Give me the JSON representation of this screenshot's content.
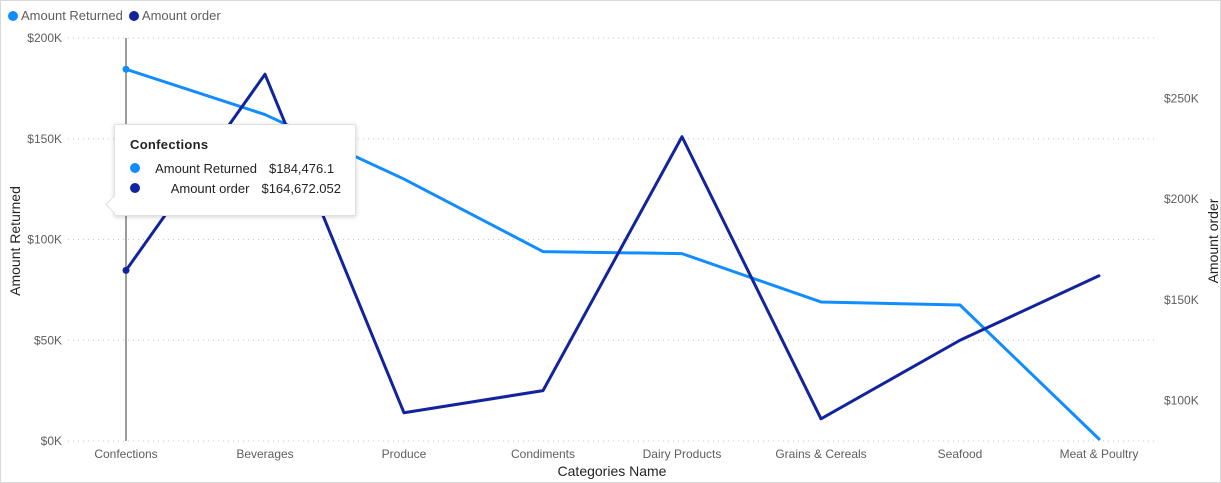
{
  "chart_data": {
    "type": "line",
    "categories": [
      "Confections",
      "Beverages",
      "Produce",
      "Condiments",
      "Dairy Products",
      "Grains & Cereals",
      "Seafood",
      "Meat & Poultry"
    ],
    "series": [
      {
        "name": "Amount Returned",
        "axis": "left",
        "color": "#118dff",
        "values": [
          184476.1,
          162000,
          130000,
          94000,
          93000,
          69000,
          67500,
          1000
        ]
      },
      {
        "name": "Amount order",
        "axis": "right",
        "color": "#12239e",
        "values": [
          164672.052,
          262000,
          94000,
          105000,
          231000,
          91000,
          130000,
          162000
        ]
      }
    ],
    "xlabel": "Categories Name",
    "ylabel": "Amount Returned",
    "y2label": "Amount order",
    "ylim": [
      0,
      200000
    ],
    "y2lim": [
      80000,
      280000
    ],
    "yticks": [
      "$0K",
      "$50K",
      "$100K",
      "$150K",
      "$200K"
    ],
    "y2ticks": [
      "$100K",
      "$150K",
      "$200K",
      "$250K"
    ],
    "grid": true,
    "legend_position": "top-left"
  },
  "legend": {
    "items": [
      {
        "label": "Amount Returned",
        "color": "#118dff"
      },
      {
        "label": "Amount order",
        "color": "#12239e"
      }
    ]
  },
  "tooltip": {
    "title": "Confections",
    "rows": [
      {
        "label": "Amount Returned",
        "value": "$184,476.1",
        "color": "#118dff"
      },
      {
        "label": "Amount order",
        "value": "$164,672.052",
        "color": "#12239e"
      }
    ]
  }
}
